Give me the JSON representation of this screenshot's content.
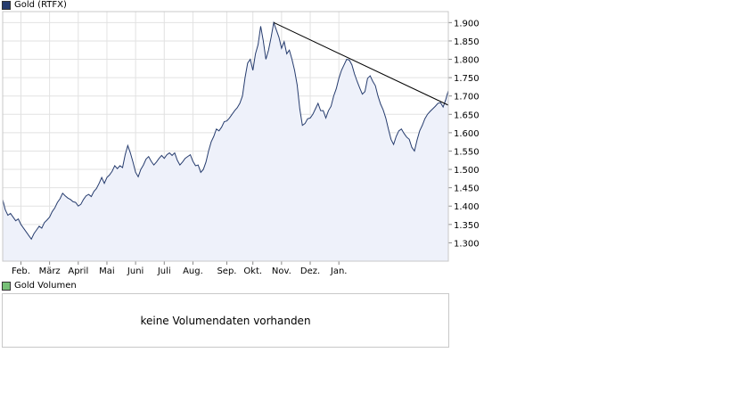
{
  "legend": {
    "price": {
      "label": "Gold (RTFX)",
      "color": "#263c6e"
    },
    "volume": {
      "label": "Gold Volumen",
      "color": "#77c077"
    }
  },
  "volume_panel": {
    "message": "keine Volumendaten vorhanden"
  },
  "chart_data": {
    "type": "area",
    "title": "Gold (RTFX)",
    "xlabel": "",
    "ylabel": "",
    "x_ticks": [
      "Feb.",
      "März",
      "April",
      "Mai",
      "Juni",
      "Juli",
      "Aug.",
      "Sep.",
      "Okt.",
      "Nov.",
      "Dez.",
      "Jan."
    ],
    "y_ticks": [
      "1.300",
      "1.350",
      "1.400",
      "1.450",
      "1.500",
      "1.550",
      "1.600",
      "1.650",
      "1.700",
      "1.750",
      "1.800",
      "1.850",
      "1.900"
    ],
    "ylim": [
      1250,
      1930
    ],
    "grid": true,
    "line_color": "#263c6e",
    "fill_color": "#eef1fa",
    "series": [
      {
        "values": [
          1418,
          1390,
          1375,
          1380,
          1370,
          1360,
          1365,
          1350,
          1340,
          1330,
          1320,
          1310,
          1325,
          1335,
          1345,
          1340,
          1355,
          1362,
          1370,
          1385,
          1395,
          1410,
          1420,
          1435,
          1428,
          1422,
          1418,
          1412,
          1410,
          1400,
          1405,
          1418,
          1428,
          1432,
          1426,
          1440,
          1448,
          1462,
          1478,
          1462,
          1478,
          1485,
          1495,
          1510,
          1502,
          1510,
          1505,
          1540,
          1565,
          1545,
          1520,
          1492,
          1480,
          1500,
          1512,
          1528,
          1535,
          1522,
          1512,
          1520,
          1530,
          1538,
          1530,
          1540,
          1545,
          1538,
          1545,
          1525,
          1512,
          1520,
          1530,
          1535,
          1540,
          1522,
          1510,
          1512,
          1492,
          1500,
          1520,
          1550,
          1575,
          1590,
          1610,
          1605,
          1615,
          1630,
          1632,
          1640,
          1650,
          1660,
          1668,
          1680,
          1700,
          1750,
          1790,
          1800,
          1770,
          1815,
          1840,
          1890,
          1850,
          1800,
          1825,
          1860,
          1900,
          1880,
          1860,
          1830,
          1848,
          1815,
          1825,
          1800,
          1770,
          1730,
          1665,
          1620,
          1625,
          1638,
          1640,
          1650,
          1665,
          1680,
          1660,
          1660,
          1640,
          1660,
          1672,
          1700,
          1720,
          1748,
          1770,
          1785,
          1800,
          1798,
          1785,
          1760,
          1740,
          1722,
          1705,
          1712,
          1748,
          1755,
          1740,
          1728,
          1700,
          1678,
          1662,
          1640,
          1610,
          1582,
          1568,
          1590,
          1605,
          1610,
          1598,
          1588,
          1582,
          1560,
          1550,
          1580,
          1605,
          1620,
          1638,
          1650,
          1658,
          1665,
          1672,
          1680,
          1682,
          1670,
          1690,
          1715
        ]
      }
    ],
    "x_tick_index": [
      7,
      18,
      29,
      40,
      51,
      62,
      73,
      86,
      96,
      107,
      118,
      129
    ],
    "trendline": {
      "from": {
        "index": 104,
        "value": 1900
      },
      "to": {
        "end": true,
        "value": 1675
      }
    }
  }
}
